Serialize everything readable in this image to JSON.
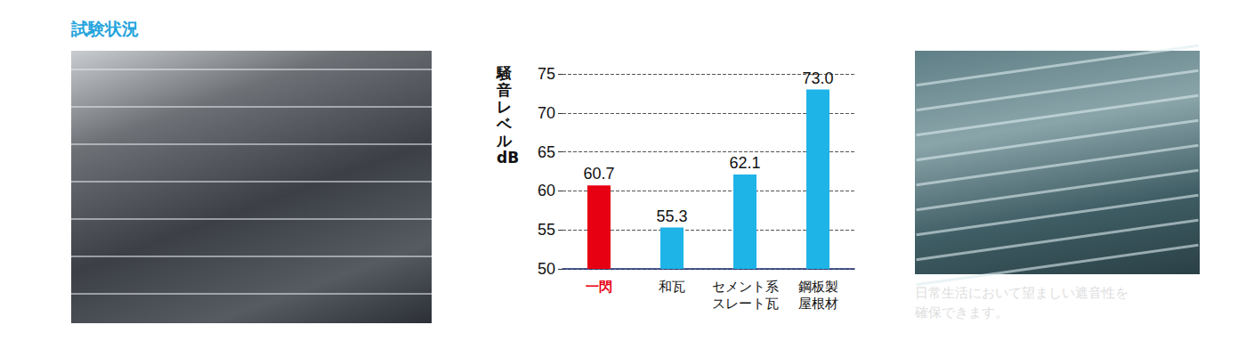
{
  "header": {
    "title": "試験状況"
  },
  "caption": "日常生活において望ましい遮音性を\n確保できます。",
  "chart_data": {
    "type": "bar",
    "ylabel": "騒音レベル dB",
    "categories": [
      "一閃",
      "和瓦",
      "セメント系\nスレート瓦",
      "鋼板製\n屋根材"
    ],
    "values": [
      60.7,
      55.3,
      62.1,
      73.0
    ],
    "value_labels": [
      "60.7",
      "55.3",
      "62.1",
      "73.0"
    ],
    "colors": [
      "#e60012",
      "#1eb4e8",
      "#1eb4e8",
      "#1eb4e8"
    ],
    "ylim": [
      50,
      75
    ],
    "yticks": [
      50,
      55,
      60,
      65,
      70,
      75
    ],
    "grid": true,
    "data_labels": true
  }
}
